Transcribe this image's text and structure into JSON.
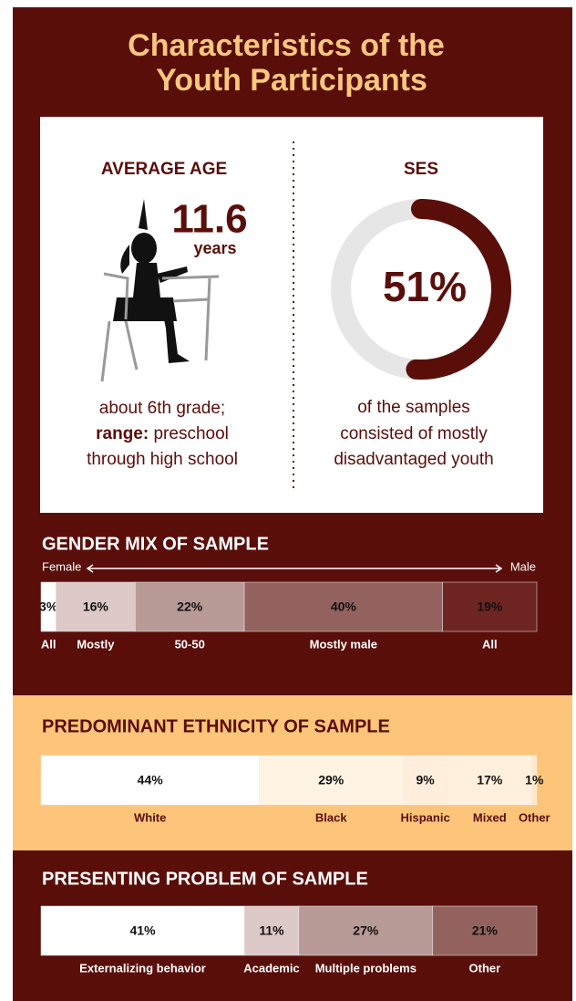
{
  "title_lines": [
    "Characteristics of the",
    "Youth Participants"
  ],
  "age": {
    "heading": "AVERAGE AGE",
    "value": "11.6",
    "unit": "years",
    "note": {
      "line1": "about 6th grade;",
      "range_label": "range:",
      "range_text": "preschool",
      "line3": "through high school"
    }
  },
  "ses": {
    "heading": "SES",
    "value": 51,
    "value_label": "51%",
    "note_lines": [
      "of the samples",
      "consisted of mostly",
      "disadvantaged youth"
    ]
  },
  "gender": {
    "title": "GENDER MIX OF SAMPLE",
    "left": "Female",
    "right": "Male",
    "values": [
      3,
      16,
      22,
      40,
      19
    ],
    "value_labels": [
      "3%",
      "16%",
      "22%",
      "40%",
      "19%"
    ],
    "categories": [
      "All",
      "Mostly",
      "50-50",
      "Mostly male",
      "All"
    ],
    "colors": [
      "#ffffff",
      "#ddc9c7",
      "#b89a97",
      "#93625f",
      "#6e2522"
    ]
  },
  "ethnicity": {
    "title": "PREDOMINANT ETHNICITY OF SAMPLE",
    "values": [
      44,
      29,
      9,
      17,
      1
    ],
    "value_labels": [
      "44%",
      "29%",
      "9%",
      "17%",
      "1%"
    ],
    "categories": [
      "White",
      "Black",
      "Hispanic",
      "Mixed",
      "Other"
    ],
    "colors": [
      "#ffffff",
      "#fff3e4",
      "#ffeedb",
      "#fff0dd",
      "#ffe8c8"
    ]
  },
  "problem": {
    "title": "PRESENTING PROBLEM OF SAMPLE",
    "values": [
      41,
      11,
      27,
      21
    ],
    "value_labels": [
      "41%",
      "11%",
      "27%",
      "21%"
    ],
    "categories": [
      "Externalizing behavior",
      "Academic",
      "Multiple problems",
      "Other"
    ],
    "colors": [
      "#ffffff",
      "#ddc9c7",
      "#b89a97",
      "#93625f"
    ]
  }
}
